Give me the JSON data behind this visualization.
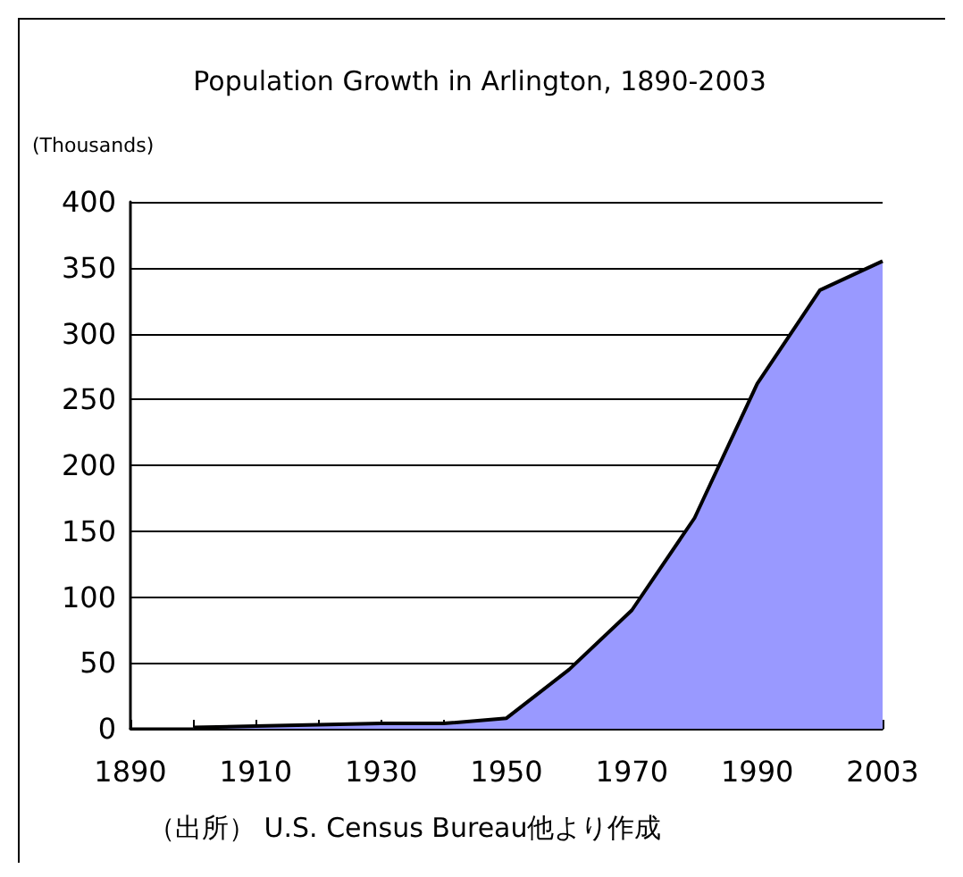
{
  "chart_data": {
    "type": "area",
    "title": "Population Growth in Arlington, 1890-2003",
    "ylabel": "(Thousands)",
    "categories": [
      "1890",
      null,
      "1910",
      null,
      "1930",
      null,
      "1950",
      null,
      "1970",
      null,
      "1990",
      null,
      "2003"
    ],
    "series": [
      {
        "color": "#9999ff",
        "values": [
          null,
          1,
          2,
          3,
          4,
          4,
          8,
          45,
          90,
          160,
          262,
          333,
          355
        ]
      }
    ],
    "ylim": [
      0,
      400
    ],
    "yticks": [
      0,
      50,
      100,
      150,
      200,
      250,
      300,
      350,
      400
    ],
    "grid": "y",
    "marker": "none",
    "line_style": "solid",
    "annotations": [
      "（出所） U.S. Census Bureau他より作成"
    ]
  }
}
